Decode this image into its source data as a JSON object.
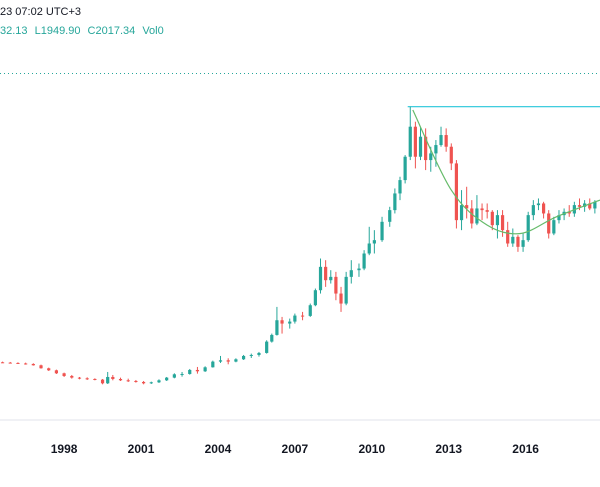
{
  "header": {
    "line1": "23 07:02 UTC+3",
    "open": "32.13",
    "low": "L1949.90",
    "close": "C2017.34",
    "volume": "Vol0"
  },
  "colors": {
    "up": "#26a69a",
    "down": "#ef5350",
    "cup_curve": "#66bb6a",
    "resistance": "#26c6da",
    "price_line": "#26a69a",
    "axis": "#e0e3eb"
  },
  "chart_data": {
    "type": "candlestick",
    "title": "",
    "xlabel": "",
    "ylabel": "",
    "x_ticks": [
      "1998",
      "2001",
      "2004",
      "2007",
      "2010",
      "2013",
      "2016"
    ],
    "xlim": [
      1995.5,
      2018.9
    ],
    "ylim": [
      150,
      2020
    ],
    "annotations": {
      "resistance_level": 1920,
      "resistance_start_year": 2011.4,
      "current_price_line": 2017,
      "cup_curve": [
        [
          2011.6,
          1900
        ],
        [
          2013.1,
          1420
        ],
        [
          2014.5,
          1210
        ],
        [
          2015.8,
          1160
        ],
        [
          2017.2,
          1260
        ],
        [
          2018.9,
          1360
        ]
      ]
    },
    "candles": [
      [
        1995.6,
        388,
        392,
        384,
        386
      ],
      [
        1995.9,
        386,
        390,
        382,
        384
      ],
      [
        1996.2,
        384,
        388,
        378,
        381
      ],
      [
        1996.5,
        381,
        386,
        374,
        378
      ],
      [
        1996.8,
        378,
        382,
        368,
        370
      ],
      [
        1997.1,
        370,
        374,
        350,
        352
      ],
      [
        1997.4,
        352,
        356,
        336,
        340
      ],
      [
        1997.7,
        340,
        344,
        318,
        322
      ],
      [
        1998.0,
        322,
        326,
        300,
        306
      ],
      [
        1998.3,
        306,
        312,
        290,
        296
      ],
      [
        1998.6,
        296,
        300,
        286,
        292
      ],
      [
        1998.9,
        292,
        298,
        282,
        288
      ],
      [
        1999.2,
        288,
        292,
        280,
        284
      ],
      [
        1999.5,
        284,
        288,
        256,
        262
      ],
      [
        1999.7,
        262,
        330,
        258,
        300
      ],
      [
        1999.9,
        300,
        312,
        280,
        288
      ],
      [
        2000.2,
        288,
        296,
        276,
        280
      ],
      [
        2000.5,
        280,
        290,
        270,
        276
      ],
      [
        2000.8,
        276,
        282,
        266,
        270
      ],
      [
        2001.1,
        270,
        276,
        256,
        262
      ],
      [
        2001.4,
        262,
        272,
        258,
        268
      ],
      [
        2001.7,
        268,
        286,
        264,
        280
      ],
      [
        2002.0,
        280,
        300,
        276,
        296
      ],
      [
        2002.3,
        296,
        322,
        292,
        316
      ],
      [
        2002.6,
        316,
        330,
        302,
        318
      ],
      [
        2002.9,
        318,
        348,
        314,
        342
      ],
      [
        2003.2,
        342,
        360,
        320,
        334
      ],
      [
        2003.5,
        334,
        364,
        330,
        358
      ],
      [
        2003.8,
        358,
        398,
        356,
        392
      ],
      [
        2004.1,
        392,
        426,
        384,
        400
      ],
      [
        2004.4,
        400,
        412,
        376,
        392
      ],
      [
        2004.7,
        392,
        412,
        388,
        406
      ],
      [
        2005.0,
        406,
        432,
        402,
        426
      ],
      [
        2005.3,
        426,
        440,
        414,
        432
      ],
      [
        2005.6,
        432,
        450,
        422,
        444
      ],
      [
        2005.9,
        444,
        520,
        440,
        512
      ],
      [
        2006.1,
        512,
        560,
        506,
        552
      ],
      [
        2006.3,
        552,
        720,
        548,
        640
      ],
      [
        2006.5,
        640,
        660,
        560,
        620
      ],
      [
        2006.8,
        620,
        650,
        590,
        632
      ],
      [
        2007.0,
        632,
        680,
        620,
        668
      ],
      [
        2007.3,
        668,
        690,
        640,
        666
      ],
      [
        2007.6,
        666,
        740,
        660,
        730
      ],
      [
        2007.8,
        730,
        830,
        724,
        820
      ],
      [
        2008.0,
        820,
        1010,
        800,
        960
      ],
      [
        2008.2,
        960,
        1000,
        840,
        880
      ],
      [
        2008.4,
        880,
        940,
        860,
        900
      ],
      [
        2008.6,
        900,
        930,
        760,
        800
      ],
      [
        2008.8,
        800,
        840,
        690,
        740
      ],
      [
        2009.0,
        740,
        930,
        730,
        900
      ],
      [
        2009.2,
        900,
        1000,
        860,
        940
      ],
      [
        2009.5,
        940,
        980,
        900,
        950
      ],
      [
        2009.7,
        950,
        1060,
        940,
        1040
      ],
      [
        2009.9,
        1040,
        1200,
        1030,
        1100
      ],
      [
        2010.1,
        1100,
        1180,
        1040,
        1120
      ],
      [
        2010.4,
        1120,
        1260,
        1110,
        1230
      ],
      [
        2010.7,
        1230,
        1320,
        1200,
        1300
      ],
      [
        2010.9,
        1300,
        1430,
        1280,
        1400
      ],
      [
        2011.1,
        1400,
        1500,
        1360,
        1480
      ],
      [
        2011.3,
        1480,
        1630,
        1460,
        1620
      ],
      [
        2011.5,
        1620,
        1920,
        1600,
        1800
      ],
      [
        2011.7,
        1800,
        1830,
        1550,
        1620
      ],
      [
        2011.9,
        1620,
        1800,
        1600,
        1740
      ],
      [
        2012.1,
        1740,
        1790,
        1540,
        1600
      ],
      [
        2012.3,
        1600,
        1680,
        1530,
        1640
      ],
      [
        2012.5,
        1640,
        1720,
        1560,
        1690
      ],
      [
        2012.7,
        1690,
        1800,
        1680,
        1750
      ],
      [
        2012.9,
        1750,
        1790,
        1650,
        1680
      ],
      [
        2013.1,
        1680,
        1700,
        1540,
        1580
      ],
      [
        2013.3,
        1580,
        1600,
        1190,
        1240
      ],
      [
        2013.5,
        1240,
        1420,
        1180,
        1330
      ],
      [
        2013.7,
        1330,
        1440,
        1250,
        1310
      ],
      [
        2013.9,
        1310,
        1360,
        1190,
        1220
      ],
      [
        2014.1,
        1220,
        1390,
        1210,
        1310
      ],
      [
        2014.3,
        1310,
        1340,
        1240,
        1300
      ],
      [
        2014.5,
        1300,
        1340,
        1250,
        1290
      ],
      [
        2014.7,
        1290,
        1300,
        1180,
        1210
      ],
      [
        2014.9,
        1210,
        1300,
        1130,
        1270
      ],
      [
        2015.1,
        1270,
        1300,
        1140,
        1180
      ],
      [
        2015.3,
        1180,
        1230,
        1080,
        1100
      ],
      [
        2015.5,
        1100,
        1190,
        1080,
        1140
      ],
      [
        2015.7,
        1140,
        1150,
        1050,
        1080
      ],
      [
        2015.9,
        1080,
        1160,
        1050,
        1120
      ],
      [
        2016.1,
        1120,
        1290,
        1110,
        1270
      ],
      [
        2016.3,
        1270,
        1360,
        1240,
        1330
      ],
      [
        2016.5,
        1330,
        1370,
        1300,
        1340
      ],
      [
        2016.7,
        1340,
        1350,
        1250,
        1280
      ],
      [
        2016.9,
        1280,
        1300,
        1130,
        1160
      ],
      [
        2017.1,
        1160,
        1260,
        1150,
        1240
      ],
      [
        2017.3,
        1240,
        1300,
        1220,
        1270
      ],
      [
        2017.5,
        1270,
        1310,
        1240,
        1290
      ],
      [
        2017.7,
        1290,
        1330,
        1260,
        1280
      ],
      [
        2017.9,
        1280,
        1350,
        1260,
        1330
      ],
      [
        2018.1,
        1330,
        1370,
        1300,
        1320
      ],
      [
        2018.3,
        1320,
        1360,
        1290,
        1340
      ],
      [
        2018.5,
        1340,
        1370,
        1300,
        1310
      ],
      [
        2018.7,
        1310,
        1360,
        1280,
        1350
      ]
    ]
  }
}
